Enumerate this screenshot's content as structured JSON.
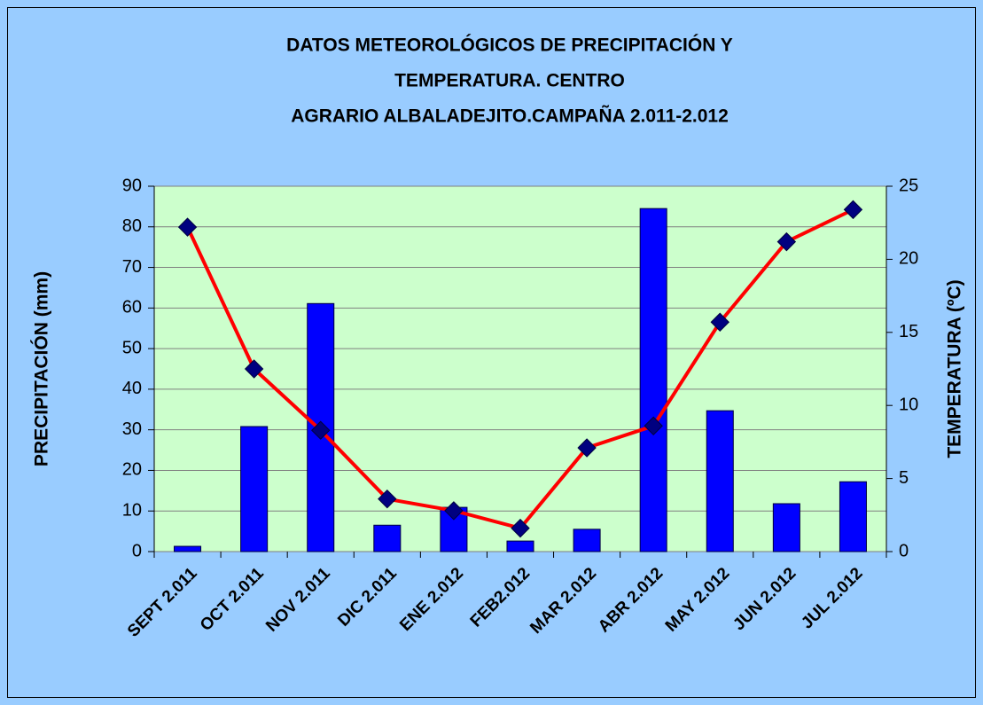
{
  "chart_data": {
    "type": "bar",
    "title": [
      "DATOS METEOROLÓGICOS DE PRECIPITACIÓN  Y",
      "TEMPERATURA. CENTRO",
      "AGRARIO ALBALADEJITO.CAMPAÑA 2.011-2.012"
    ],
    "ylabel": "PRECIPITACIÓN (mm)",
    "y2label": "TEMPERATURA (ºC)",
    "categories": [
      "SEPT 2.011",
      "OCT 2.011",
      "NOV 2.011",
      "DIC 2.011",
      "ENE 2.012",
      "FEB2.012",
      "MAR 2.012",
      "ABR 2.012",
      "MAY 2.012",
      "JUN 2.012",
      "JUL 2.012"
    ],
    "series": [
      {
        "type": "bar",
        "color": "#0000ff",
        "values": [
          1.3,
          30.8,
          61.1,
          6.5,
          10.9,
          2.6,
          5.5,
          84.5,
          34.7,
          11.8,
          17.2
        ]
      },
      {
        "type": "line",
        "axis": "y2",
        "color": "#ff0000",
        "marker_color": "#000080",
        "values": [
          22.2,
          12.5,
          8.3,
          3.6,
          2.8,
          1.6,
          7.1,
          8.6,
          15.7,
          21.2,
          23.4
        ]
      }
    ],
    "ylim": [
      0,
      90
    ],
    "yticks": [
      0,
      10,
      20,
      30,
      40,
      50,
      60,
      70,
      80,
      90
    ],
    "y2lim": [
      0,
      25
    ],
    "y2ticks": [
      0,
      5,
      10,
      15,
      20,
      25
    ],
    "grid": true
  }
}
